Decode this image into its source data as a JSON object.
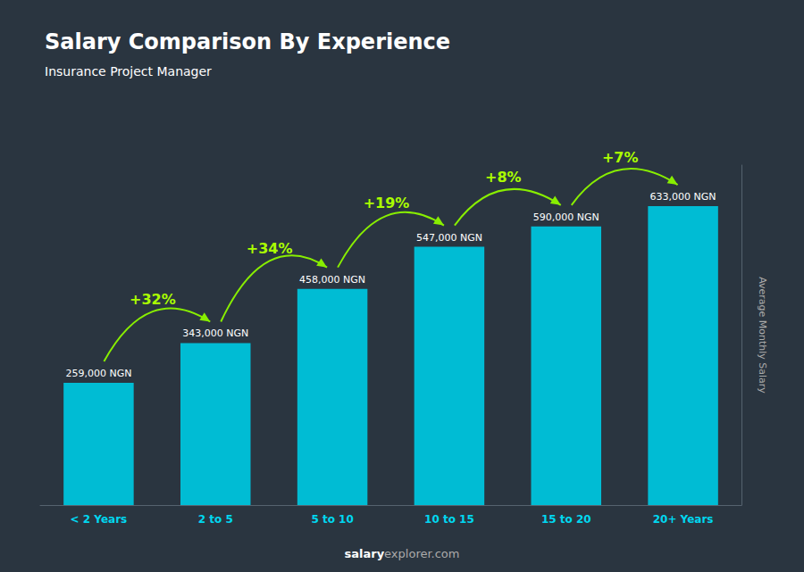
{
  "chart_data": {
    "type": "bar",
    "title": "Salary Comparison By Experience",
    "subtitle": "Insurance Project Manager",
    "ylabel": "Average Monthly Salary",
    "footer": [
      "salary",
      "explorer.com"
    ],
    "categories": [
      "< 2 Years",
      "2 to 5",
      "5 to 10",
      "10 to 15",
      "15 to 20",
      "20+ Years"
    ],
    "values": [
      259000,
      343000,
      458000,
      547000,
      590000,
      633000
    ],
    "value_labels": [
      "259,000 NGN",
      "343,000 NGN",
      "458,000 NGN",
      "547,000 NGN",
      "590,000 NGN",
      "633,000 NGN"
    ],
    "data_labels": true,
    "annotations": [
      "+32%",
      "+34%",
      "+19%",
      "+8%",
      "+7%"
    ],
    "color": "#00bcd4",
    "ylim": [
      0,
      720000
    ],
    "grid": false,
    "tick_labels": "x"
  }
}
